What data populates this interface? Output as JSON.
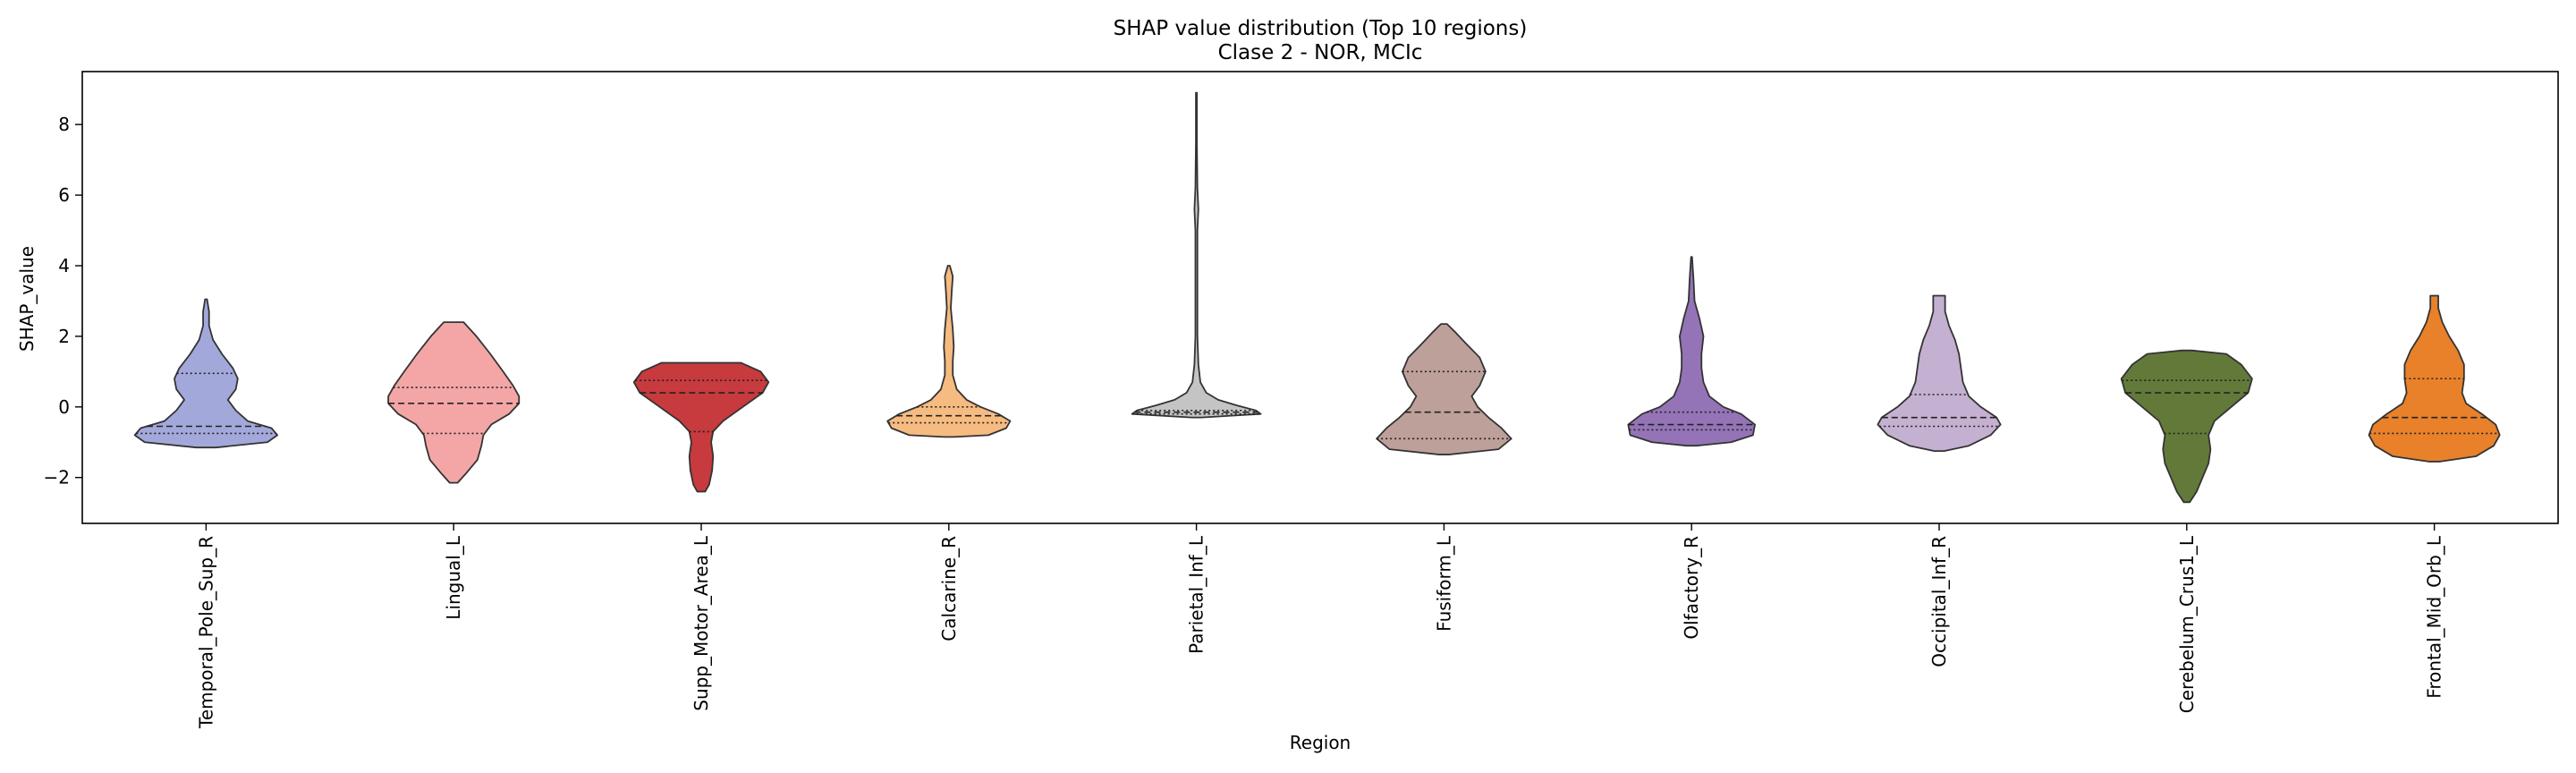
{
  "chart_data": {
    "type": "violin",
    "title": "SHAP value distribution (Top 10 regions)",
    "subtitle": "Clase 2 - NOR, MCIc",
    "xlabel": "Region",
    "ylabel": "SHAP_value",
    "ylim": [
      -3.3,
      9.5
    ],
    "yticks": [
      -2,
      0,
      2,
      4,
      6,
      8
    ],
    "grid": false,
    "categories": [
      "Temporal_Pole_Sup_R",
      "Lingual_L",
      "Supp_Motor_Area_L",
      "Calcarine_R",
      "Parietal_Inf_L",
      "Fusiform_L",
      "Olfactory_R",
      "Occipital_Inf_R",
      "Cerebelum_Crus1_L",
      "Frontal_Mid_Orb_L"
    ],
    "colors": [
      "#a3a8db",
      "#f4a6a6",
      "#c73a3d",
      "#f6bb80",
      "#c4c4c4",
      "#bea09a",
      "#9474b7",
      "#c4b0d0",
      "#637939",
      "#e8812a"
    ],
    "violins": [
      {
        "name": "Temporal_Pole_Sup_R",
        "quartiles": [
          -0.75,
          -0.55,
          0.95
        ],
        "profile": [
          [
            -1.15,
            0.1
          ],
          [
            -1.0,
            0.62
          ],
          [
            -0.8,
            0.72
          ],
          [
            -0.6,
            0.66
          ],
          [
            -0.4,
            0.42
          ],
          [
            -0.1,
            0.3
          ],
          [
            0.2,
            0.22
          ],
          [
            0.5,
            0.3
          ],
          [
            0.8,
            0.32
          ],
          [
            1.1,
            0.27
          ],
          [
            1.5,
            0.16
          ],
          [
            1.9,
            0.07
          ],
          [
            2.3,
            0.03
          ],
          [
            2.7,
            0.03
          ],
          [
            3.05,
            0.01
          ]
        ]
      },
      {
        "name": "Lingual_L",
        "quartiles": [
          -0.75,
          0.1,
          0.55
        ],
        "profile": [
          [
            -2.15,
            0.04
          ],
          [
            -1.9,
            0.12
          ],
          [
            -1.5,
            0.24
          ],
          [
            -1.1,
            0.28
          ],
          [
            -0.8,
            0.3
          ],
          [
            -0.5,
            0.38
          ],
          [
            -0.2,
            0.56
          ],
          [
            0.1,
            0.66
          ],
          [
            0.3,
            0.66
          ],
          [
            0.6,
            0.6
          ],
          [
            1.0,
            0.5
          ],
          [
            1.5,
            0.37
          ],
          [
            2.0,
            0.23
          ],
          [
            2.4,
            0.1
          ]
        ]
      },
      {
        "name": "Supp_Motor_Area_L",
        "quartiles": [
          -0.7,
          0.4,
          0.75
        ],
        "profile": [
          [
            -2.4,
            0.04
          ],
          [
            -2.2,
            0.08
          ],
          [
            -1.8,
            0.11
          ],
          [
            -1.4,
            0.12
          ],
          [
            -1.0,
            0.1
          ],
          [
            -0.7,
            0.12
          ],
          [
            -0.4,
            0.22
          ],
          [
            0.0,
            0.42
          ],
          [
            0.4,
            0.62
          ],
          [
            0.7,
            0.68
          ],
          [
            1.0,
            0.6
          ],
          [
            1.25,
            0.4
          ]
        ]
      },
      {
        "name": "Calcarine_R",
        "quartiles": [
          -0.45,
          -0.25,
          0.0
        ],
        "profile": [
          [
            -0.85,
            0.05
          ],
          [
            -0.8,
            0.4
          ],
          [
            -0.6,
            0.58
          ],
          [
            -0.4,
            0.62
          ],
          [
            -0.2,
            0.5
          ],
          [
            0.0,
            0.32
          ],
          [
            0.2,
            0.18
          ],
          [
            0.5,
            0.08
          ],
          [
            0.9,
            0.04
          ],
          [
            1.3,
            0.04
          ],
          [
            1.7,
            0.05
          ],
          [
            2.2,
            0.04
          ],
          [
            2.8,
            0.02
          ],
          [
            3.3,
            0.03
          ],
          [
            3.7,
            0.04
          ],
          [
            4.0,
            0.01
          ]
        ]
      },
      {
        "name": "Parietal_Inf_L",
        "quartiles": [
          -0.2,
          -0.15,
          -0.1
        ],
        "profile": [
          [
            -0.3,
            0.05
          ],
          [
            -0.2,
            0.65
          ],
          [
            -0.1,
            0.6
          ],
          [
            0.05,
            0.4
          ],
          [
            0.2,
            0.22
          ],
          [
            0.4,
            0.1
          ],
          [
            0.7,
            0.04
          ],
          [
            1.2,
            0.02
          ],
          [
            2.0,
            0.01
          ],
          [
            3.5,
            0.01
          ],
          [
            5.0,
            0.01
          ],
          [
            5.6,
            0.02
          ],
          [
            6.2,
            0.01
          ],
          [
            7.5,
            0.005
          ],
          [
            8.9,
            0.005
          ]
        ]
      },
      {
        "name": "Fusiform_L",
        "quartiles": [
          -0.9,
          -0.15,
          1.0
        ],
        "profile": [
          [
            -1.35,
            0.05
          ],
          [
            -1.2,
            0.55
          ],
          [
            -0.9,
            0.68
          ],
          [
            -0.6,
            0.58
          ],
          [
            -0.3,
            0.45
          ],
          [
            0.0,
            0.34
          ],
          [
            0.3,
            0.28
          ],
          [
            0.6,
            0.36
          ],
          [
            1.0,
            0.42
          ],
          [
            1.4,
            0.36
          ],
          [
            1.8,
            0.22
          ],
          [
            2.1,
            0.12
          ],
          [
            2.35,
            0.03
          ]
        ]
      },
      {
        "name": "Olfactory_R",
        "quartiles": [
          -0.65,
          -0.5,
          -0.15
        ],
        "profile": [
          [
            -1.1,
            0.05
          ],
          [
            -1.0,
            0.4
          ],
          [
            -0.8,
            0.62
          ],
          [
            -0.5,
            0.64
          ],
          [
            -0.2,
            0.5
          ],
          [
            0.0,
            0.32
          ],
          [
            0.3,
            0.18
          ],
          [
            0.7,
            0.12
          ],
          [
            1.1,
            0.1
          ],
          [
            1.5,
            0.1
          ],
          [
            2.0,
            0.12
          ],
          [
            2.5,
            0.08
          ],
          [
            3.0,
            0.03
          ],
          [
            3.6,
            0.02
          ],
          [
            4.25,
            0.005
          ]
        ]
      },
      {
        "name": "Occipital_Inf_R",
        "quartiles": [
          -0.55,
          -0.3,
          0.35
        ],
        "profile": [
          [
            -1.25,
            0.05
          ],
          [
            -1.1,
            0.3
          ],
          [
            -0.8,
            0.52
          ],
          [
            -0.5,
            0.62
          ],
          [
            -0.3,
            0.58
          ],
          [
            0.0,
            0.42
          ],
          [
            0.3,
            0.3
          ],
          [
            0.7,
            0.24
          ],
          [
            1.1,
            0.22
          ],
          [
            1.5,
            0.2
          ],
          [
            1.9,
            0.16
          ],
          [
            2.3,
            0.1
          ],
          [
            2.7,
            0.06
          ],
          [
            3.15,
            0.06
          ]
        ]
      },
      {
        "name": "Cerebelum_Crus1_L",
        "quartiles": [
          -0.75,
          0.4,
          0.75
        ],
        "profile": [
          [
            -2.7,
            0.03
          ],
          [
            -2.4,
            0.1
          ],
          [
            -2.0,
            0.16
          ],
          [
            -1.6,
            0.22
          ],
          [
            -1.2,
            0.24
          ],
          [
            -0.8,
            0.22
          ],
          [
            -0.4,
            0.28
          ],
          [
            0.0,
            0.45
          ],
          [
            0.4,
            0.62
          ],
          [
            0.8,
            0.66
          ],
          [
            1.2,
            0.55
          ],
          [
            1.5,
            0.4
          ],
          [
            1.6,
            0.05
          ]
        ]
      },
      {
        "name": "Frontal_Mid_Orb_L",
        "quartiles": [
          -0.75,
          -0.3,
          0.8
        ],
        "profile": [
          [
            -1.55,
            0.05
          ],
          [
            -1.4,
            0.42
          ],
          [
            -1.1,
            0.6
          ],
          [
            -0.8,
            0.66
          ],
          [
            -0.5,
            0.62
          ],
          [
            -0.2,
            0.48
          ],
          [
            0.1,
            0.32
          ],
          [
            0.4,
            0.28
          ],
          [
            0.8,
            0.3
          ],
          [
            1.2,
            0.3
          ],
          [
            1.6,
            0.24
          ],
          [
            2.0,
            0.15
          ],
          [
            2.4,
            0.08
          ],
          [
            2.8,
            0.04
          ],
          [
            3.15,
            0.04
          ]
        ]
      }
    ]
  }
}
